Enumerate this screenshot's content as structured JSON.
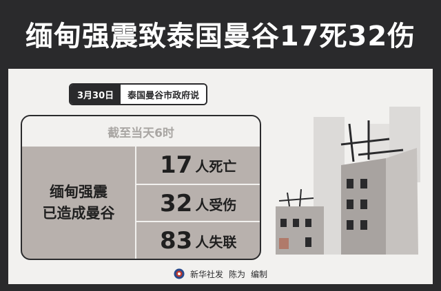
{
  "title": "缅甸强震致泰国曼谷17死32伤",
  "tag": {
    "date": "3月30日",
    "source": "泰国曼谷市政府说"
  },
  "card": {
    "heading": "截至当天6时",
    "left_line1": "缅甸强震",
    "left_line2": "已造成曼谷",
    "stats": [
      {
        "number": "17",
        "label": "人死亡"
      },
      {
        "number": "32",
        "label": "人受伤"
      },
      {
        "number": "83",
        "label": "人失联"
      }
    ]
  },
  "footer": {
    "agency": "新华社发",
    "author": "陈为",
    "role": "编制"
  },
  "colors": {
    "dark": "#2a2a2c",
    "panel": "#f2f1ef",
    "card": "#b8b1ad"
  }
}
